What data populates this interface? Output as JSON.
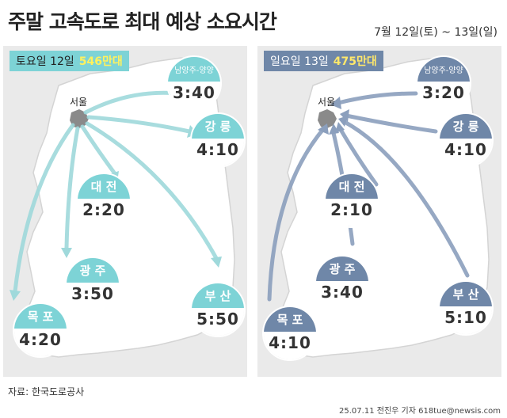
{
  "title": "주말 고속도로 최대 예상 소요시간",
  "date_range": "7월 12일(토) ~ 13일(일)",
  "saturday": {
    "badge_day": "토요일 12일",
    "badge_count": "546만대",
    "seoul": "서울",
    "cities": [
      {
        "name": "남양주-양양",
        "time": "3:40"
      },
      {
        "name": "강 릉",
        "time": "4:10"
      },
      {
        "name": "대 전",
        "time": "2:20"
      },
      {
        "name": "광 주",
        "time": "3:50"
      },
      {
        "name": "부 산",
        "time": "5:50"
      },
      {
        "name": "목 포",
        "time": "4:20"
      }
    ]
  },
  "sunday": {
    "badge_day": "일요일 13일",
    "badge_count": "475만대",
    "seoul": "서울",
    "cities": [
      {
        "name": "남양주-양양",
        "time": "3:20"
      },
      {
        "name": "강 릉",
        "time": "4:10"
      },
      {
        "name": "대 전",
        "time": "2:10"
      },
      {
        "name": "광 주",
        "time": "3:40"
      },
      {
        "name": "부 산",
        "time": "5:10"
      },
      {
        "name": "목 포",
        "time": "4:10"
      }
    ]
  },
  "source": "자료: 한국도로공사",
  "credit": "25.07.11 전진우 기자 618tue@newsis.com",
  "colors": {
    "saturday_accent": "#7dd3d6",
    "sunday_accent": "#6f87a8",
    "map_fill": "#ffffff",
    "seoul_fill": "#8a8a8a"
  }
}
